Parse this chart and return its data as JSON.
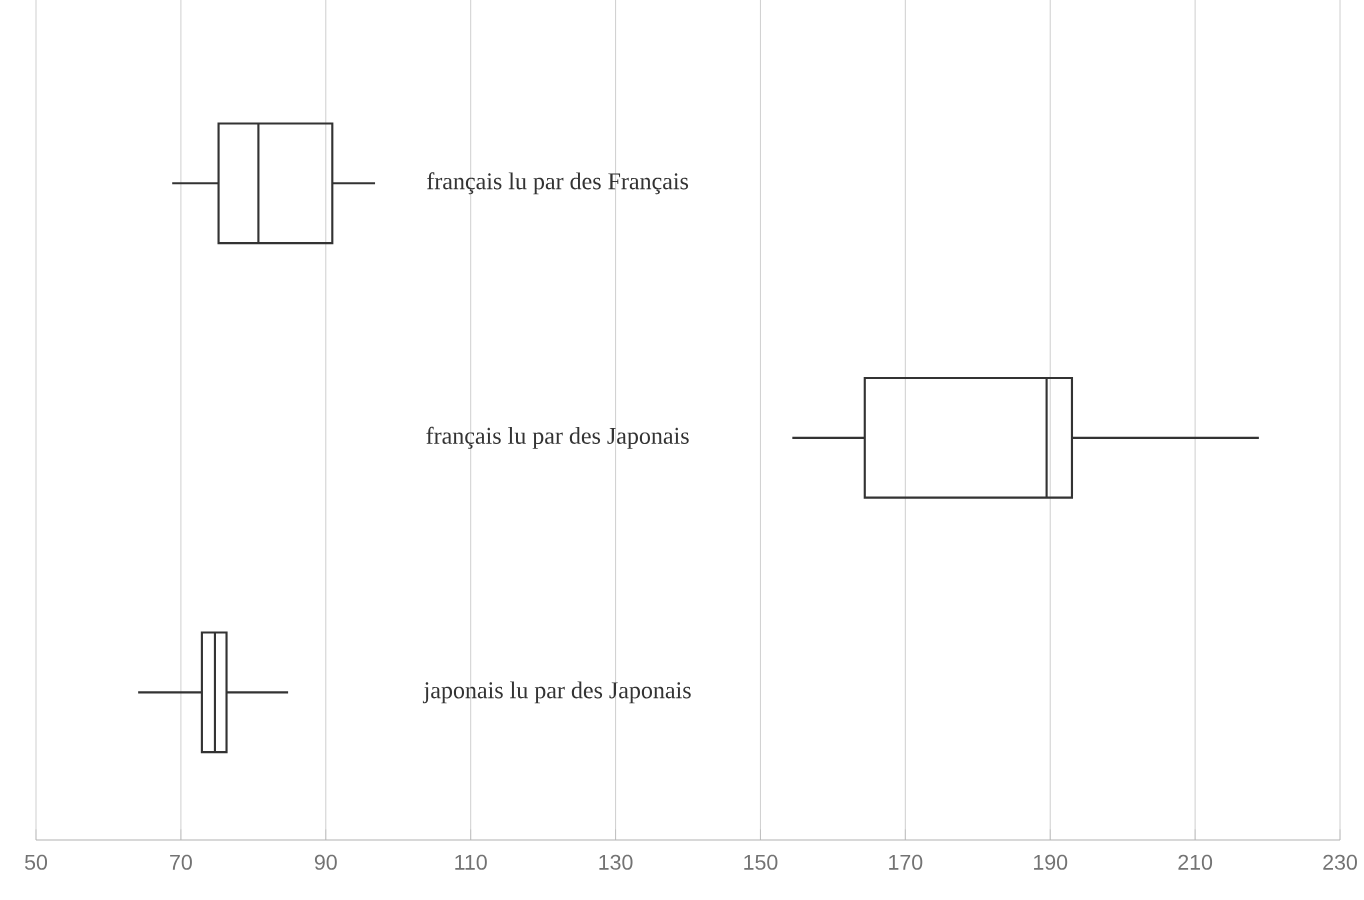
{
  "chart_data": {
    "type": "box",
    "orientation": "horizontal",
    "categories": [
      "français lu par des Français",
      "français lu par des Japonais",
      "japonais lu par des Japonais"
    ],
    "boxes": [
      {
        "low": 68.8,
        "q1": 75.2,
        "median": 80.7,
        "q3": 90.9,
        "high": 96.8
      },
      {
        "low": 154.4,
        "q1": 164.4,
        "median": 189.5,
        "q3": 193,
        "high": 218.8
      },
      {
        "low": 64.1,
        "q1": 72.9,
        "median": 74.7,
        "q3": 76.3,
        "high": 84.8
      }
    ],
    "xlim": [
      50,
      230
    ],
    "xticks": [
      50,
      70,
      90,
      110,
      130,
      150,
      170,
      190,
      210,
      230
    ],
    "grid": "x"
  }
}
